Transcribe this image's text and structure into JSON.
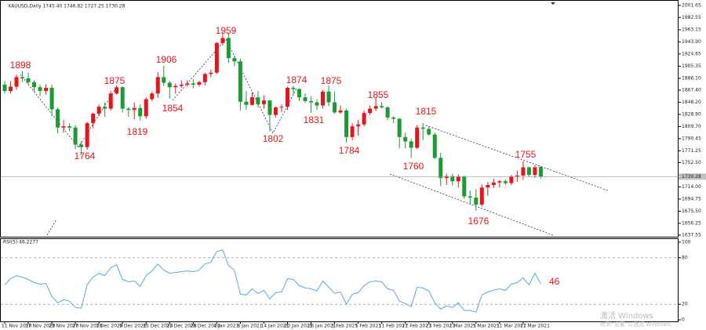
{
  "chart_data": [
    {
      "type": "candlestick",
      "title": "XAUUSD,Daily  1745.40 1746.82 1727.25 1730.28",
      "categories": [
        "11 Nov 2020",
        null,
        null,
        null,
        "17 Nov 2020",
        null,
        null,
        null,
        "23 Nov 2020",
        null,
        null,
        null,
        "27 Nov 2020",
        null,
        null,
        null,
        "3 Dec 2020",
        null,
        null,
        null,
        "9 Dec 2020",
        null,
        null,
        null,
        "15 Dec 2020",
        null,
        null,
        null,
        "21 Dec 2020",
        null,
        null,
        null,
        "28 Dec 2020",
        null,
        null,
        null,
        "4 Jan 2021",
        null,
        null,
        null,
        "8 Jan 2021",
        null,
        null,
        null,
        "14 Jan 2021",
        null,
        null,
        null,
        "20 Jan 2021",
        null,
        null,
        null,
        "26 Jan 2021",
        null,
        null,
        null,
        "1 Feb 2021",
        null,
        null,
        null,
        "5 Feb 2021",
        null,
        null,
        null,
        "11 Feb 2021",
        null,
        null,
        null,
        "17 Feb 2021",
        null,
        null,
        null,
        "23 Feb 2021",
        null,
        null,
        null,
        "1 Mar 2021",
        null,
        null,
        null,
        "5 Mar 2021",
        null,
        null,
        null,
        "11 Mar 2021",
        null,
        null,
        null,
        "17 Mar 2021",
        null,
        null,
        null
      ],
      "open": [
        1876,
        1866,
        1873,
        1888,
        1886,
        1880,
        1872,
        1866,
        1871,
        1837,
        1808,
        1810,
        1808,
        1781,
        1777,
        1815,
        1830,
        1841,
        1838,
        1862,
        1872,
        1838,
        1836,
        1839,
        1826,
        1853,
        1862,
        1888,
        1879,
        1872,
        1874,
        1876,
        1878,
        1876,
        1880,
        1893,
        1895,
        1942,
        1950,
        1918,
        1913,
        1849,
        1844,
        1856,
        1845,
        1851,
        1828,
        1840,
        1841,
        1871,
        1869,
        1856,
        1850,
        1848,
        1843,
        1865,
        1848,
        1832,
        1835,
        1793,
        1810,
        1813,
        1831,
        1838,
        1842,
        1840,
        1824,
        1822,
        1793,
        1786,
        1776,
        1808,
        1806,
        1797,
        1760,
        1728,
        1731,
        1723,
        1730,
        1699,
        1697,
        1686,
        1713,
        1717,
        1721,
        1723,
        1720,
        1730,
        1732,
        1745,
        1733,
        1745.4
      ],
      "high": [
        1882,
        1882,
        1892,
        1898,
        1895,
        1883,
        1876,
        1877,
        1876,
        1840,
        1820,
        1815,
        1812,
        1786,
        1817,
        1832,
        1844,
        1848,
        1866,
        1875,
        1874,
        1840,
        1848,
        1845,
        1856,
        1865,
        1896,
        1906,
        1882,
        1878,
        1883,
        1883,
        1885,
        1882,
        1895,
        1900,
        1944,
        1959,
        1958,
        1922,
        1917,
        1866,
        1864,
        1866,
        1859,
        1852,
        1841,
        1845,
        1873,
        1874,
        1870,
        1862,
        1858,
        1853,
        1868,
        1875,
        1865,
        1843,
        1838,
        1815,
        1820,
        1835,
        1843,
        1855,
        1848,
        1842,
        1826,
        1823,
        1800,
        1790,
        1812,
        1815,
        1810,
        1800,
        1768,
        1735,
        1735,
        1734,
        1732,
        1708,
        1710,
        1718,
        1722,
        1727,
        1725,
        1726,
        1733,
        1740,
        1755,
        1746,
        1748,
        1746.82
      ],
      "low": [
        1862,
        1862,
        1868,
        1880,
        1877,
        1865,
        1858,
        1860,
        1826,
        1799,
        1800,
        1802,
        1774,
        1764,
        1773,
        1807,
        1826,
        1825,
        1835,
        1860,
        1832,
        1825,
        1821,
        1819,
        1822,
        1850,
        1855,
        1874,
        1854,
        1862,
        1871,
        1873,
        1870,
        1873,
        1875,
        1888,
        1893,
        1938,
        1910,
        1905,
        1835,
        1836,
        1843,
        1840,
        1838,
        1802,
        1824,
        1833,
        1836,
        1860,
        1850,
        1847,
        1831,
        1836,
        1838,
        1842,
        1830,
        1830,
        1784,
        1788,
        1795,
        1810,
        1828,
        1834,
        1838,
        1820,
        1815,
        1775,
        1775,
        1760,
        1774,
        1788,
        1795,
        1758,
        1715,
        1717,
        1716,
        1713,
        1695,
        1686,
        1676,
        1683,
        1700,
        1712,
        1713,
        1717,
        1717,
        1722,
        1725,
        1730,
        1728,
        1727.25
      ],
      "close": [
        1866,
        1873,
        1888,
        1886,
        1880,
        1872,
        1866,
        1871,
        1837,
        1808,
        1810,
        1808,
        1781,
        1777,
        1815,
        1830,
        1841,
        1838,
        1862,
        1872,
        1838,
        1836,
        1839,
        1826,
        1853,
        1862,
        1888,
        1879,
        1872,
        1874,
        1876,
        1878,
        1876,
        1880,
        1893,
        1895,
        1942,
        1950,
        1918,
        1913,
        1849,
        1844,
        1856,
        1845,
        1851,
        1828,
        1840,
        1841,
        1871,
        1869,
        1856,
        1850,
        1848,
        1843,
        1865,
        1848,
        1832,
        1835,
        1793,
        1810,
        1813,
        1831,
        1838,
        1842,
        1840,
        1824,
        1822,
        1793,
        1786,
        1776,
        1808,
        1806,
        1797,
        1760,
        1728,
        1731,
        1723,
        1730,
        1699,
        1697,
        1686,
        1713,
        1717,
        1721,
        1723,
        1720,
        1730,
        1732,
        1745,
        1733,
        1745,
        1730.28
      ],
      "up_color": "#e8141b",
      "down_color": "#1c9a34",
      "ylim": [
        1635,
        2006.5
      ],
      "yticks": [
        2001.65,
        1982.55,
        1963.15,
        {
          "value": 1943.9,
          "label": "1943.90"
        },
        1924.65,
        1905.35,
        {
          "value": 1886.1,
          "label": "1886.10"
        },
        {
          "value": 1867.4,
          "label": "1867.40"
        },
        {
          "value": 1848.2,
          "label": "1848.20"
        },
        {
          "value": 1828.9,
          "label": "1828.90"
        },
        {
          "value": 1809.7,
          "label": "1809.70"
        },
        1790.45,
        1771.25,
        {
          "value": 1752.5,
          "label": "1752.50"
        },
        {
          "value": 1714,
          "label": "1714.00"
        },
        1694.75,
        {
          "value": 1675.5,
          "label": "1675.50"
        },
        1656.25,
        1637.55
      ],
      "grid": false,
      "annotations": [
        "1898",
        "1764",
        "1875",
        "1819",
        "1906",
        "1854",
        "1959",
        "1802",
        "1874",
        "1831",
        "1875",
        "1784",
        "1855",
        "1815",
        "1760",
        "1676",
        "1755"
      ]
    },
    {
      "type": "line",
      "title": "RSI(5) 46.2277",
      "color": "#5aa9dc",
      "values": [
        45,
        53,
        57,
        55,
        52,
        48,
        46,
        47,
        30,
        22,
        26,
        24,
        16,
        15,
        45,
        55,
        60,
        57,
        67,
        71,
        52,
        49,
        50,
        43,
        57,
        63,
        72,
        64,
        60,
        61,
        62,
        63,
        62,
        64,
        72,
        74,
        88,
        90,
        70,
        64,
        33,
        32,
        40,
        34,
        38,
        27,
        35,
        36,
        53,
        52,
        44,
        41,
        40,
        37,
        50,
        42,
        34,
        36,
        20,
        33,
        35,
        44,
        49,
        50,
        49,
        40,
        38,
        24,
        21,
        17,
        42,
        41,
        37,
        22,
        14,
        18,
        16,
        22,
        12,
        12,
        10,
        32,
        36,
        38,
        40,
        38,
        46,
        48,
        54,
        45,
        60,
        46.2277
      ],
      "ylim": [
        -3,
        105
      ],
      "yticks": [
        100,
        80,
        20,
        0
      ],
      "annotations": [
        "46"
      ]
    }
  ],
  "watermark": {
    "line1": "激活 Windows",
    "line2": "转到“设置”以激活 Windows。"
  }
}
